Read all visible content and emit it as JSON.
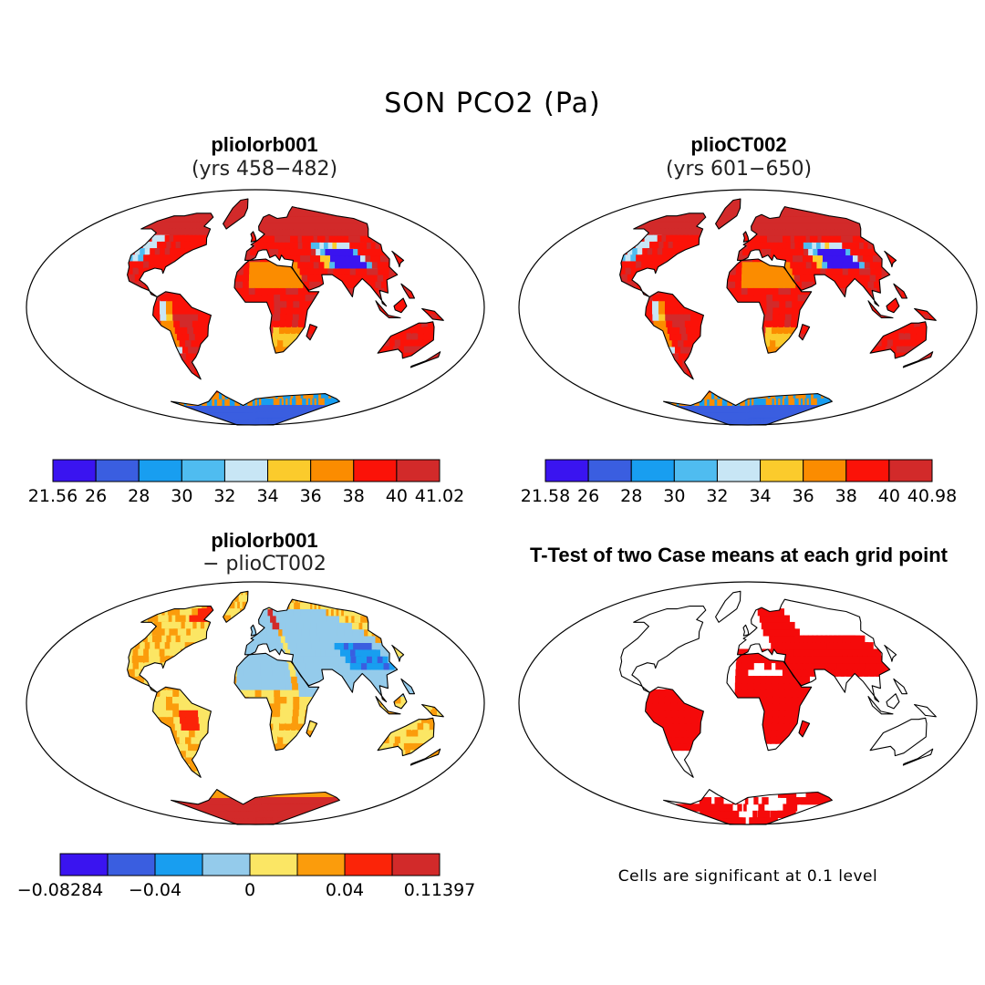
{
  "figure": {
    "title": "SON PCO2 (Pa)"
  },
  "panels": [
    {
      "id": "pliolorb001",
      "title": "pliolorb001",
      "subtitle": "(yrs 458−482)",
      "colorbar": {
        "colors": [
          "#3a14f0",
          "#3a5ee0",
          "#189ef0",
          "#4fbcf0",
          "#c8e6f5",
          "#fbcb2c",
          "#fb8c00",
          "#fb1208",
          "#d22a2a"
        ],
        "ticks": [
          "21.56",
          "26",
          "28",
          "30",
          "32",
          "34",
          "36",
          "38",
          "40",
          "41.02"
        ]
      }
    },
    {
      "id": "plioCT002",
      "title": "plioCT002",
      "subtitle": "(yrs 601−650)",
      "colorbar": {
        "colors": [
          "#3a14f0",
          "#3a5ee0",
          "#189ef0",
          "#4fbcf0",
          "#c8e6f5",
          "#fbcb2c",
          "#fb8c00",
          "#fb1208",
          "#d22a2a"
        ],
        "ticks": [
          "21.58",
          "26",
          "28",
          "30",
          "32",
          "34",
          "36",
          "38",
          "40",
          "40.98"
        ]
      }
    },
    {
      "id": "difference",
      "title": "pliolorb001",
      "subtitle": "− plioCT002",
      "colorbar": {
        "colors": [
          "#3a14f0",
          "#3a5ee0",
          "#189ef0",
          "#94cbeb",
          "#fbe664",
          "#fb9c0c",
          "#fb2408",
          "#d22a2a"
        ],
        "ticks": [
          "−0.08284",
          "−0.04",
          "0",
          "0.04",
          "0.11397"
        ],
        "tick_bins": [
          0,
          2,
          4,
          6,
          8
        ]
      }
    },
    {
      "id": "ttest",
      "title": "T-Test of two Case means at each grid point",
      "note": "Cells are significant at 0.1 level",
      "fill": "#f50a0a"
    }
  ]
}
